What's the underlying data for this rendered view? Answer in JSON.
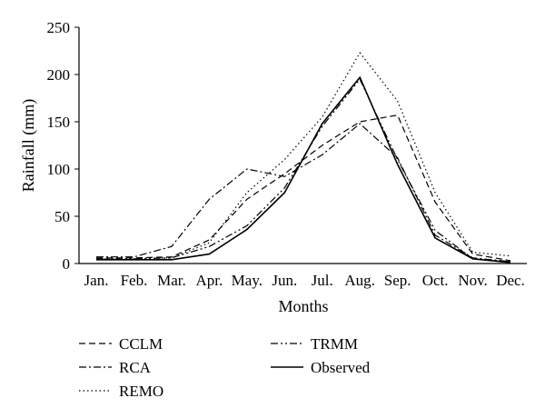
{
  "chart_data": {
    "type": "line",
    "title": "",
    "xlabel": "Months",
    "ylabel": "Rainfall (mm)",
    "ylim": [
      0,
      250
    ],
    "yticks": [
      0,
      50,
      100,
      150,
      200,
      250
    ],
    "grid": false,
    "legend_position": "bottom",
    "categories": [
      "Jan.",
      "Feb.",
      "Mar.",
      "Apr.",
      "May.",
      "Jun.",
      "Jul.",
      "Aug.",
      "Sep.",
      "Oct.",
      "Nov.",
      "Dec."
    ],
    "series": [
      {
        "name": "CCLM",
        "dash": "dashed",
        "values": [
          6,
          6,
          7,
          25,
          68,
          95,
          125,
          150,
          157,
          65,
          10,
          3
        ]
      },
      {
        "name": "RCA",
        "dash": "dash-dot",
        "values": [
          7,
          7,
          18,
          68,
          100,
          92,
          115,
          148,
          112,
          30,
          6,
          2
        ]
      },
      {
        "name": "REMO",
        "dash": "dotted",
        "values": [
          5,
          5,
          6,
          22,
          75,
          110,
          155,
          223,
          172,
          75,
          12,
          8
        ]
      },
      {
        "name": "TRMM",
        "dash": "dash-dot-dot",
        "values": [
          5,
          5,
          6,
          18,
          40,
          80,
          145,
          195,
          110,
          35,
          5,
          2
        ]
      },
      {
        "name": "Observed",
        "dash": "solid",
        "values": [
          4,
          4,
          4,
          10,
          36,
          75,
          148,
          197,
          105,
          27,
          5,
          1
        ]
      }
    ]
  }
}
